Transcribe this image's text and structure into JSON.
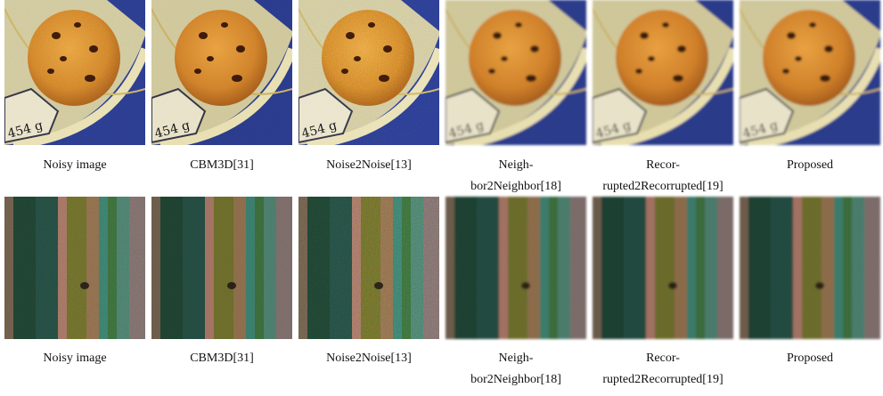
{
  "rows": [
    {
      "captions": [
        [
          "Noisy image"
        ],
        [
          "CBM3D[31]"
        ],
        [
          "Noise2Noise[13]"
        ],
        [
          "Neigh-",
          "bor2Neighbor[18]"
        ],
        [
          "Recor-",
          "rupted2Recorrupted[19]"
        ],
        [
          "Proposed"
        ]
      ]
    },
    {
      "captions": [
        [
          "Noisy image"
        ],
        [
          "CBM3D[31]"
        ],
        [
          "Noise2Noise[13]"
        ],
        [
          "Neigh-",
          "bor2Neighbor[18]"
        ],
        [
          "Recor-",
          "rupted2Recorrupted[19]"
        ],
        [
          "Proposed"
        ]
      ]
    }
  ]
}
